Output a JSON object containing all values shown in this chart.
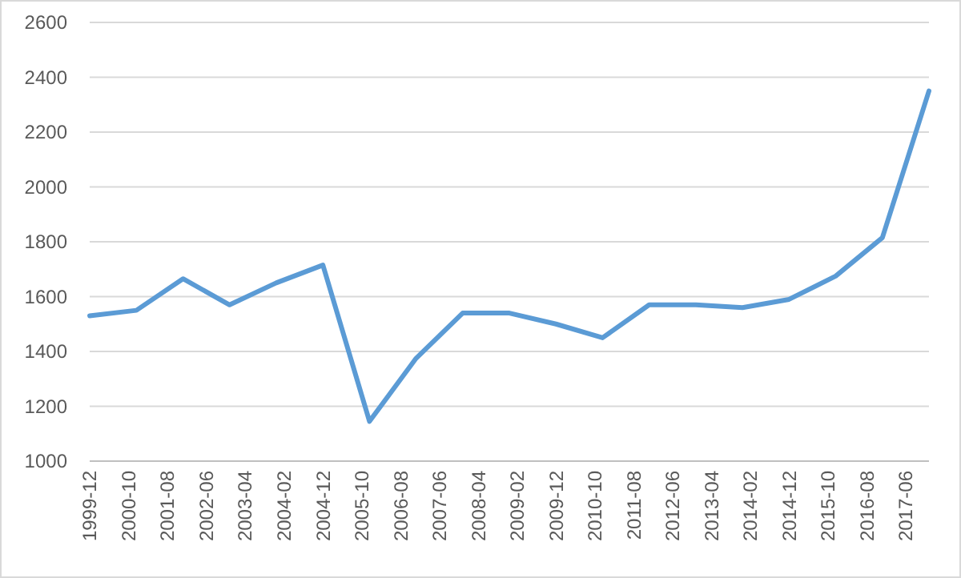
{
  "chart_data": {
    "type": "line",
    "x": [
      "1999-12",
      "2000-12",
      "2001-12",
      "2002-12",
      "2003-12",
      "2004-12",
      "2005-12",
      "2006-12",
      "2007-12",
      "2008-12",
      "2009-12",
      "2010-12",
      "2011-12",
      "2012-12",
      "2013-12",
      "2014-12",
      "2015-12",
      "2016-12",
      "2017-12"
    ],
    "series": [
      {
        "color": "#5b9bd5",
        "values": [
          1530,
          1550,
          1665,
          1570,
          1650,
          1715,
          1145,
          1375,
          1540,
          1540,
          1500,
          1450,
          1570,
          1570,
          1560,
          1590,
          1675,
          1815,
          2350
        ]
      }
    ],
    "xlim": [
      "1999-12",
      "2017-12"
    ],
    "xticks": [
      "1999-12",
      "2000-10",
      "2001-08",
      "2002-06",
      "2003-04",
      "2004-02",
      "2004-12",
      "2005-10",
      "2006-08",
      "2007-06",
      "2008-04",
      "2009-02",
      "2009-12",
      "2010-10",
      "2011-08",
      "2012-06",
      "2013-04",
      "2014-02",
      "2014-12",
      "2015-10",
      "2016-08",
      "2017-06"
    ],
    "ylim": [
      1000,
      2600
    ],
    "yticks": [
      1000,
      1200,
      1400,
      1600,
      1800,
      2000,
      2200,
      2400,
      2600
    ],
    "grid": "y",
    "marker": "none",
    "line_style": "solid"
  }
}
